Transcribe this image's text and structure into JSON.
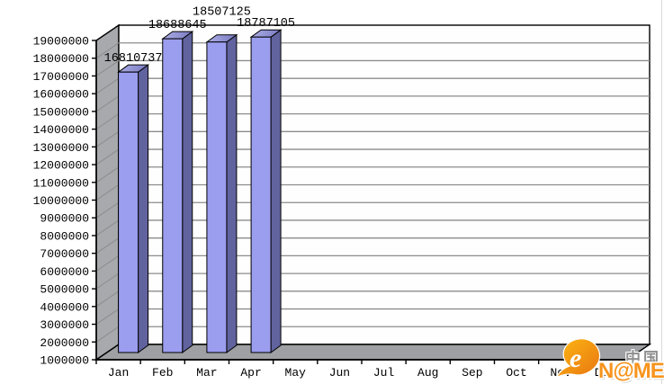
{
  "chart_data": {
    "type": "bar",
    "style": "3d-bar-chart",
    "title": "",
    "xlabel": "",
    "ylabel": "",
    "categories": [
      "Jan",
      "Feb",
      "Mar",
      "Apr",
      "May",
      "Jun",
      "Jul",
      "Aug",
      "Sep",
      "Oct",
      "Nov",
      "Dec"
    ],
    "values": [
      16810737,
      18688645,
      18507125,
      18787105,
      null,
      null,
      null,
      null,
      null,
      null,
      null,
      null
    ],
    "data_labels": [
      "16810737",
      "18688645",
      "18507125",
      "18787105"
    ],
    "ylim": [
      1000000,
      19000000
    ],
    "ytick_step": 1000000,
    "ytick_labels": [
      "1000000",
      "2000000",
      "3000000",
      "4000000",
      "5000000",
      "6000000",
      "7000000",
      "8000000",
      "9000000",
      "10000000",
      "11000000",
      "12000000",
      "13000000",
      "14000000",
      "15000000",
      "16000000",
      "17000000",
      "18000000",
      "19000000"
    ],
    "grid": true,
    "legend": "none",
    "bar_colors": {
      "front": "#9B9DEE",
      "side": "#61639F",
      "top_light": "#ACADE5",
      "top_dark": "#797BC2",
      "outline": "#000000"
    },
    "frame_colors": {
      "left_wall": "#A7A9AC",
      "floor": "#9EA0A3",
      "back_wall": "#FEFEFE",
      "gridline": "#8C8C8C",
      "axis": "#000000",
      "edge_line": "#DADADA"
    }
  },
  "watermark": {
    "cn_text": "中国",
    "brand_text": "N@ME",
    "swoosh_letter": "e",
    "orange": "#F7941E",
    "orange_light": "#FDB813",
    "orange_dark": "#E87511",
    "gray": "#8F8F8F"
  }
}
